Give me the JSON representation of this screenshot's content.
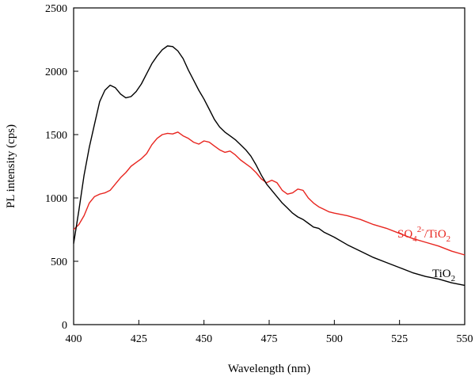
{
  "chart_data": {
    "type": "line",
    "xlabel": "Wavelength (nm)",
    "ylabel": "PL intensity (cps)",
    "xlim": [
      400,
      550
    ],
    "ylim": [
      0,
      2500
    ],
    "xticks": [
      400,
      425,
      450,
      475,
      500,
      525,
      550
    ],
    "yticks": [
      0,
      500,
      1000,
      1500,
      2000,
      2500
    ],
    "grid": false,
    "series": [
      {
        "name": "SO4 2- /TiO2",
        "label_main": "SO",
        "label_sub1": "4",
        "label_sup": "2-",
        "label_mid": "/TiO",
        "label_sub2": "2",
        "color": "#e8251f",
        "x": [
          400,
          402,
          404,
          406,
          408,
          410,
          412,
          414,
          416,
          418,
          420,
          422,
          424,
          426,
          428,
          430,
          432,
          434,
          436,
          438,
          440,
          442,
          444,
          446,
          448,
          450,
          452,
          454,
          456,
          458,
          460,
          462,
          464,
          466,
          468,
          470,
          472,
          474,
          476,
          478,
          480,
          482,
          484,
          486,
          488,
          490,
          492,
          494,
          496,
          498,
          500,
          505,
          510,
          515,
          520,
          525,
          530,
          535,
          540,
          545,
          550
        ],
        "y": [
          750,
          790,
          860,
          960,
          1010,
          1030,
          1040,
          1060,
          1110,
          1160,
          1200,
          1250,
          1280,
          1310,
          1350,
          1420,
          1470,
          1500,
          1510,
          1505,
          1520,
          1490,
          1470,
          1440,
          1425,
          1450,
          1440,
          1410,
          1380,
          1360,
          1370,
          1340,
          1300,
          1270,
          1240,
          1200,
          1150,
          1120,
          1140,
          1120,
          1060,
          1030,
          1040,
          1070,
          1060,
          1000,
          960,
          930,
          910,
          890,
          880,
          860,
          830,
          790,
          760,
          720,
          680,
          650,
          620,
          580,
          550
        ]
      },
      {
        "name": "TiO2",
        "label_main": "TiO",
        "label_sub": "2",
        "color": "#000000",
        "x": [
          400,
          402,
          404,
          406,
          408,
          410,
          412,
          414,
          416,
          418,
          420,
          422,
          424,
          426,
          428,
          430,
          432,
          434,
          436,
          438,
          440,
          442,
          444,
          446,
          448,
          450,
          452,
          454,
          456,
          458,
          460,
          462,
          464,
          466,
          468,
          470,
          472,
          474,
          476,
          478,
          480,
          482,
          484,
          486,
          488,
          490,
          492,
          494,
          496,
          498,
          500,
          505,
          510,
          515,
          520,
          525,
          530,
          535,
          540,
          545,
          550
        ],
        "y": [
          640,
          900,
          1180,
          1400,
          1580,
          1760,
          1850,
          1890,
          1870,
          1820,
          1790,
          1800,
          1840,
          1900,
          1980,
          2060,
          2120,
          2170,
          2200,
          2195,
          2160,
          2100,
          2010,
          1930,
          1850,
          1780,
          1700,
          1620,
          1560,
          1520,
          1490,
          1460,
          1420,
          1380,
          1330,
          1260,
          1180,
          1110,
          1060,
          1010,
          960,
          920,
          880,
          850,
          830,
          800,
          770,
          760,
          730,
          710,
          690,
          630,
          580,
          530,
          490,
          450,
          410,
          380,
          360,
          330,
          310
        ]
      }
    ]
  }
}
